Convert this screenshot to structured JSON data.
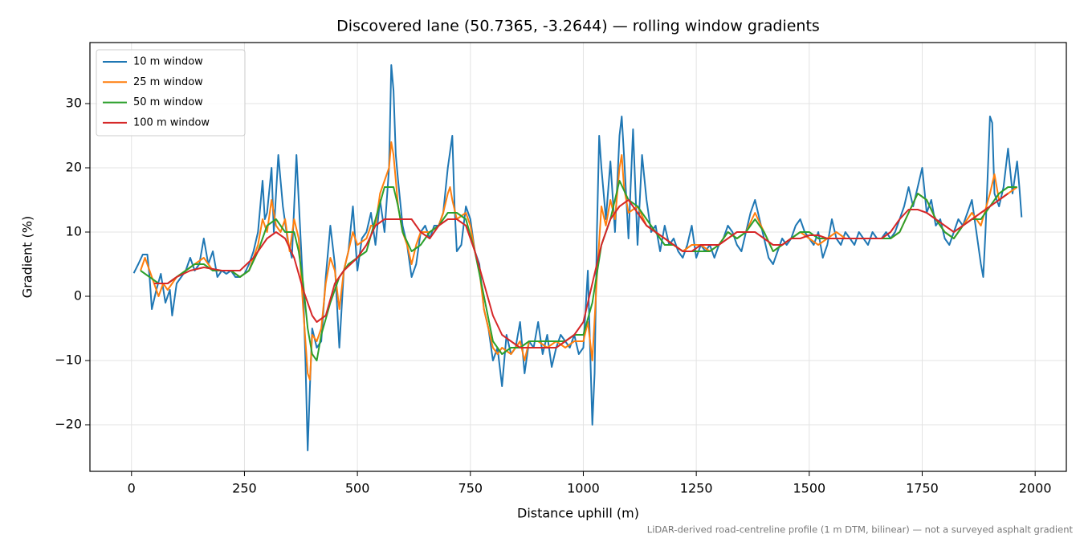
{
  "chart_data": {
    "type": "line",
    "title": "Discovered lane (50.7365, -3.2644) — rolling window gradients",
    "x_label": "Distance uphill (m)",
    "y_label": "Gradient (%)",
    "note": "LiDAR-derived road-centreline profile (1 m DTM, bilinear) — not a surveyed asphalt gradient",
    "xlim": [
      -92,
      2069
    ],
    "ylim": [
      -27.25,
      39.5
    ],
    "xticks": [
      0,
      250,
      500,
      750,
      1000,
      1250,
      1500,
      1750,
      2000
    ],
    "yticks": [
      {
        "value": -20,
        "label": "−20"
      },
      {
        "value": -10,
        "label": "−10"
      },
      0,
      10,
      20,
      30
    ],
    "grid": true,
    "legend": "upper left",
    "series": [
      {
        "name": "10 m window",
        "color": "#1f77b4",
        "x": [
          5,
          15,
          25,
          35,
          40,
          45,
          55,
          65,
          75,
          85,
          90,
          100,
          110,
          120,
          130,
          140,
          150,
          160,
          170,
          180,
          190,
          200,
          210,
          220,
          230,
          240,
          250,
          260,
          270,
          280,
          290,
          295,
          300,
          310,
          315,
          325,
          335,
          345,
          355,
          365,
          370,
          380,
          385,
          390,
          395,
          400,
          410,
          420,
          430,
          440,
          450,
          460,
          470,
          480,
          490,
          500,
          510,
          520,
          530,
          540,
          550,
          560,
          570,
          575,
          580,
          585,
          590,
          600,
          610,
          620,
          630,
          640,
          650,
          660,
          670,
          680,
          690,
          700,
          710,
          715,
          720,
          730,
          740,
          750,
          760,
          770,
          780,
          790,
          800,
          810,
          820,
          830,
          840,
          850,
          860,
          870,
          880,
          890,
          900,
          910,
          920,
          930,
          940,
          950,
          960,
          970,
          980,
          990,
          1000,
          1010,
          1020,
          1025,
          1030,
          1035,
          1040,
          1050,
          1060,
          1070,
          1080,
          1085,
          1090,
          1100,
          1110,
          1120,
          1130,
          1140,
          1150,
          1160,
          1170,
          1180,
          1190,
          1200,
          1210,
          1220,
          1230,
          1240,
          1250,
          1260,
          1270,
          1280,
          1290,
          1300,
          1310,
          1320,
          1330,
          1340,
          1350,
          1360,
          1370,
          1380,
          1390,
          1400,
          1410,
          1420,
          1430,
          1440,
          1450,
          1460,
          1470,
          1480,
          1490,
          1500,
          1510,
          1520,
          1530,
          1540,
          1550,
          1560,
          1570,
          1580,
          1590,
          1600,
          1610,
          1620,
          1630,
          1640,
          1650,
          1660,
          1670,
          1680,
          1690,
          1700,
          1710,
          1720,
          1730,
          1740,
          1750,
          1760,
          1770,
          1780,
          1790,
          1800,
          1810,
          1820,
          1830,
          1840,
          1850,
          1860,
          1870,
          1880,
          1885,
          1890,
          1900,
          1905,
          1910,
          1920,
          1930,
          1940,
          1950,
          1960,
          1965,
          1970
        ],
        "values": [
          3.6,
          5,
          6.5,
          6.5,
          3,
          -2,
          1,
          3.5,
          -1,
          1,
          -3,
          2,
          3,
          4,
          6,
          4,
          5,
          9,
          5,
          7,
          3,
          4,
          3.5,
          4,
          3,
          3,
          3.5,
          5,
          7,
          10,
          18,
          12,
          13,
          20,
          10,
          22,
          14,
          9,
          6,
          22,
          15,
          1,
          -10,
          -24,
          -14,
          -5,
          -8,
          -7,
          3,
          11,
          5,
          -8,
          4,
          7,
          14,
          4,
          9,
          10,
          13,
          8,
          15,
          10,
          20,
          36,
          32,
          22,
          18,
          11,
          8,
          3,
          5,
          10,
          11,
          9,
          11,
          11,
          13,
          20,
          25,
          14,
          7,
          8,
          14,
          12,
          7,
          5,
          -2,
          -5,
          -10,
          -8,
          -14,
          -6,
          -9,
          -8,
          -4,
          -12,
          -7,
          -8,
          -4,
          -9,
          -6,
          -11,
          -8,
          -6,
          -7,
          -8,
          -6,
          -9,
          -8,
          4,
          -20,
          -12,
          10,
          25,
          20,
          12,
          21,
          10,
          25,
          28,
          22,
          9,
          26,
          8,
          22,
          15,
          10,
          11,
          7,
          11,
          8,
          9,
          7,
          6,
          8,
          11,
          6,
          8,
          7,
          8,
          6,
          8,
          9,
          11,
          10,
          8,
          7,
          10,
          13,
          15,
          12,
          9,
          6,
          5,
          7,
          9,
          8,
          9,
          11,
          12,
          10,
          9,
          8,
          10,
          6,
          8,
          12,
          9,
          8,
          10,
          9,
          8,
          10,
          9,
          8,
          10,
          9,
          9,
          10,
          9,
          10,
          12,
          14,
          17,
          14,
          17,
          20,
          13,
          15,
          11,
          12,
          9,
          8,
          10,
          12,
          11,
          13,
          15,
          10,
          5,
          3,
          10,
          28,
          27,
          16,
          14,
          17,
          23,
          16,
          21,
          17,
          12.3
        ]
      },
      {
        "name": "25 m window",
        "color": "#ff7f0e",
        "x": [
          20,
          30,
          40,
          50,
          60,
          70,
          80,
          90,
          100,
          120,
          140,
          160,
          180,
          200,
          220,
          240,
          260,
          280,
          290,
          300,
          310,
          320,
          330,
          340,
          350,
          360,
          370,
          380,
          390,
          395,
          400,
          410,
          420,
          430,
          440,
          450,
          460,
          470,
          480,
          490,
          500,
          520,
          530,
          540,
          550,
          560,
          570,
          575,
          580,
          590,
          600,
          610,
          620,
          630,
          640,
          660,
          680,
          690,
          700,
          705,
          710,
          720,
          740,
          750,
          760,
          770,
          780,
          790,
          800,
          810,
          820,
          840,
          860,
          870,
          880,
          900,
          920,
          940,
          960,
          980,
          1000,
          1010,
          1020,
          1030,
          1040,
          1050,
          1060,
          1070,
          1080,
          1085,
          1090,
          1100,
          1120,
          1140,
          1160,
          1180,
          1200,
          1220,
          1240,
          1260,
          1280,
          1300,
          1320,
          1340,
          1360,
          1380,
          1400,
          1420,
          1440,
          1460,
          1480,
          1500,
          1520,
          1540,
          1560,
          1580,
          1600,
          1620,
          1640,
          1660,
          1680,
          1700,
          1720,
          1740,
          1760,
          1780,
          1800,
          1820,
          1840,
          1860,
          1880,
          1900,
          1910,
          1920,
          1940,
          1960
        ],
        "values": [
          4,
          6,
          4,
          2,
          0,
          2,
          1,
          2,
          3,
          4,
          5,
          6,
          4,
          4,
          4,
          3,
          4,
          8,
          12,
          10,
          15,
          11,
          10,
          12,
          7,
          12,
          9,
          -2,
          -12,
          -13,
          -6,
          -7,
          -5,
          2,
          6,
          4,
          -2,
          4,
          7,
          10,
          8,
          9,
          11,
          11,
          16,
          18,
          20,
          24,
          22,
          14,
          10,
          8,
          5,
          8,
          10,
          10,
          11,
          13,
          16,
          17,
          15,
          12,
          13,
          11,
          7,
          4,
          -2,
          -5,
          -8,
          -9,
          -8,
          -9,
          -7,
          -10,
          -7,
          -7,
          -8,
          -7,
          -8,
          -7,
          -7,
          -4,
          -10,
          3,
          14,
          11,
          15,
          12,
          20,
          22,
          17,
          13,
          14,
          11,
          10,
          9,
          8,
          7,
          8,
          8,
          7,
          8,
          10,
          9,
          10,
          13,
          10,
          7,
          8,
          9,
          10,
          9,
          8,
          9,
          10,
          9,
          9,
          9,
          9,
          9,
          9,
          10,
          13,
          16,
          15,
          12,
          10,
          9,
          11,
          13,
          11,
          16,
          19,
          15,
          16,
          17
        ]
      },
      {
        "name": "50 m window",
        "color": "#2ca02c",
        "x": [
          20,
          40,
          60,
          80,
          100,
          120,
          140,
          160,
          180,
          200,
          220,
          240,
          260,
          280,
          300,
          320,
          340,
          360,
          370,
          380,
          390,
          400,
          410,
          420,
          440,
          460,
          480,
          500,
          520,
          540,
          560,
          580,
          590,
          600,
          620,
          640,
          660,
          680,
          700,
          720,
          740,
          760,
          780,
          800,
          820,
          840,
          860,
          880,
          900,
          920,
          940,
          960,
          980,
          1000,
          1020,
          1040,
          1060,
          1080,
          1100,
          1120,
          1140,
          1160,
          1180,
          1200,
          1220,
          1240,
          1260,
          1280,
          1300,
          1320,
          1340,
          1360,
          1380,
          1400,
          1420,
          1440,
          1460,
          1480,
          1500,
          1520,
          1540,
          1560,
          1580,
          1600,
          1620,
          1640,
          1660,
          1680,
          1700,
          1720,
          1740,
          1760,
          1780,
          1800,
          1820,
          1840,
          1860,
          1880,
          1900,
          1920,
          1940,
          1960
        ],
        "values": [
          4,
          3,
          2,
          2,
          3,
          4,
          5,
          5,
          4,
          4,
          4,
          3,
          4,
          7,
          11,
          12,
          10,
          10,
          7,
          2,
          -5,
          -9,
          -10,
          -6,
          -1,
          3,
          5,
          6,
          7,
          12,
          17,
          17,
          14,
          10,
          7,
          8,
          10,
          11,
          13,
          13,
          12,
          7,
          0,
          -7,
          -9,
          -8,
          -8,
          -7,
          -7,
          -7,
          -7,
          -7,
          -6,
          -6,
          -1,
          8,
          12,
          18,
          15,
          14,
          12,
          10,
          8,
          8,
          7,
          7,
          7,
          7,
          8,
          10,
          9,
          10,
          12,
          10,
          7,
          8,
          9,
          10,
          10,
          9,
          9,
          9,
          9,
          9,
          9,
          9,
          9,
          9,
          10,
          13,
          16,
          15,
          12,
          10,
          9,
          11,
          12,
          12,
          14,
          16,
          17,
          17
        ]
      },
      {
        "name": "100 m window",
        "color": "#d62728",
        "x": [
          50,
          80,
          100,
          130,
          160,
          200,
          240,
          270,
          300,
          320,
          340,
          360,
          380,
          400,
          410,
          430,
          450,
          470,
          500,
          520,
          540,
          560,
          580,
          600,
          620,
          640,
          660,
          680,
          700,
          720,
          740,
          760,
          780,
          800,
          820,
          840,
          860,
          880,
          900,
          920,
          940,
          960,
          980,
          1000,
          1020,
          1040,
          1060,
          1080,
          1100,
          1120,
          1140,
          1160,
          1180,
          1200,
          1220,
          1240,
          1260,
          1280,
          1300,
          1320,
          1340,
          1360,
          1380,
          1400,
          1420,
          1440,
          1460,
          1480,
          1500,
          1520,
          1540,
          1560,
          1580,
          1600,
          1620,
          1640,
          1660,
          1680,
          1700,
          1720,
          1740,
          1760,
          1780,
          1800,
          1820,
          1840,
          1860,
          1880,
          1900,
          1920,
          1940
        ],
        "values": [
          2,
          2,
          3,
          4,
          4.5,
          4,
          4,
          6,
          9,
          10,
          9,
          6,
          1,
          -3,
          -4,
          -3,
          2,
          4,
          6,
          8,
          11,
          12,
          12,
          12,
          12,
          10,
          9,
          11,
          12,
          12,
          11,
          7,
          2,
          -3,
          -6,
          -7,
          -8,
          -8,
          -8,
          -8,
          -8,
          -7,
          -6,
          -4,
          2,
          8,
          12,
          14,
          15,
          13,
          11,
          10,
          9,
          8,
          7,
          7,
          8,
          8,
          8,
          9,
          10,
          10,
          10,
          9,
          8,
          8,
          9,
          9,
          9.5,
          9.5,
          9,
          9,
          9,
          9,
          9,
          9,
          9,
          10,
          12,
          13.5,
          13.5,
          13,
          12,
          11,
          10,
          11,
          12,
          13,
          14,
          15,
          16
        ]
      }
    ]
  }
}
